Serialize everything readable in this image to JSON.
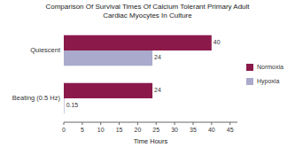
{
  "chart_data": {
    "type": "bar",
    "orientation": "horizontal",
    "title": "Comparison Of Survival Times Of Calcium Tolerant Primary Adult\nCardiac Myocytes In Culture",
    "x_label": "Time Hours",
    "categories": [
      "Beating (0.5 Hz)",
      "Quiescent"
    ],
    "series": [
      {
        "name": "Normoxia",
        "color": "#8B1A4A",
        "values": [
          24,
          40
        ]
      },
      {
        "name": "Hypoxia",
        "color": "#AAAACC",
        "values": [
          0.15,
          24
        ]
      }
    ],
    "xlim": [
      0,
      47
    ],
    "xticks": [
      0,
      5,
      10,
      15,
      20,
      25,
      30,
      35,
      40,
      45
    ],
    "data_labels": true,
    "legend": "right",
    "grid": false
  }
}
